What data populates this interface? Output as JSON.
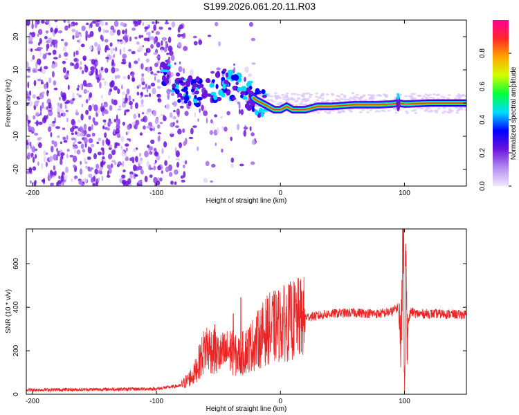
{
  "chart_data": [
    {
      "type": "heatmap",
      "title": "S199.2026.061.20.11.R03",
      "xlabel": "Height of straight line (km)",
      "ylabel": "Frequency (Hz)",
      "xlim": [
        -205,
        150
      ],
      "ylim": [
        -25,
        25
      ],
      "xticks": [
        -200,
        -100,
        0,
        100
      ],
      "xtick_labels": [
        "-200",
        "-100",
        "0",
        "100"
      ],
      "yticks": [
        -20,
        -10,
        0,
        10,
        20
      ],
      "ytick_labels": [
        "-20",
        "-10",
        "0",
        "10",
        "20"
      ],
      "colorbar": {
        "label": "Normalized spectral amplitude",
        "range": [
          0,
          1
        ],
        "ticks": [
          0.0,
          0.2,
          0.4,
          0.6,
          0.8
        ],
        "tick_labels": [
          "0.0",
          "0.2",
          "0.4",
          "0.6",
          "0.8"
        ],
        "colors": [
          "#f0e8ff",
          "#b48cf0",
          "#6a14dc",
          "#0000ff",
          "#00dcff",
          "#00ff3c",
          "#d2ff00",
          "#ffa500",
          "#ff2828",
          "#ff0096"
        ]
      },
      "ridge": {
        "name": "signal trace",
        "x": [
          -95,
          -80,
          -60,
          -45,
          -30,
          -20,
          -10,
          -5,
          0,
          5,
          10,
          20,
          30,
          40,
          60,
          80,
          90,
          95,
          100,
          120,
          150
        ],
        "y": [
          9,
          4,
          3,
          6,
          4,
          1,
          -1,
          -2,
          -2,
          -1,
          -2,
          -2,
          -1,
          -1,
          -0.5,
          -0.5,
          -0.3,
          0,
          -0.3,
          0,
          0
        ]
      }
    },
    {
      "type": "line",
      "xlabel": "Height of straight line (km)",
      "ylabel": "SNR (10 * v/v)",
      "xlim": [
        -205,
        150
      ],
      "ylim": [
        0,
        760
      ],
      "xticks": [
        -200,
        -100,
        0,
        100
      ],
      "xtick_labels": [
        "-200",
        "-100",
        "0",
        "100"
      ],
      "yticks": [
        0,
        200,
        400,
        600
      ],
      "ytick_labels": [
        "0",
        "200",
        "400",
        "600"
      ],
      "color": "#ee2222",
      "series": [
        {
          "name": "SNR",
          "x": [
            -205,
            -150,
            -100,
            -80,
            -70,
            -60,
            -50,
            -40,
            -35,
            -30,
            -20,
            -10,
            0,
            10,
            20,
            30,
            40,
            60,
            80,
            90,
            95,
            97,
            99,
            100,
            101,
            102,
            105,
            110,
            130,
            150
          ],
          "y": [
            20,
            22,
            25,
            40,
            90,
            220,
            180,
            200,
            170,
            190,
            240,
            300,
            320,
            340,
            355,
            360,
            370,
            375,
            370,
            380,
            400,
            180,
            760,
            90,
            690,
            300,
            380,
            370,
            370,
            365
          ],
          "spikes": [
            {
              "x": -53,
              "y": 320
            },
            {
              "x": -38,
              "y": 370
            },
            {
              "x": -32,
              "y": 445
            },
            {
              "x": -28,
              "y": 280
            }
          ]
        }
      ]
    }
  ]
}
